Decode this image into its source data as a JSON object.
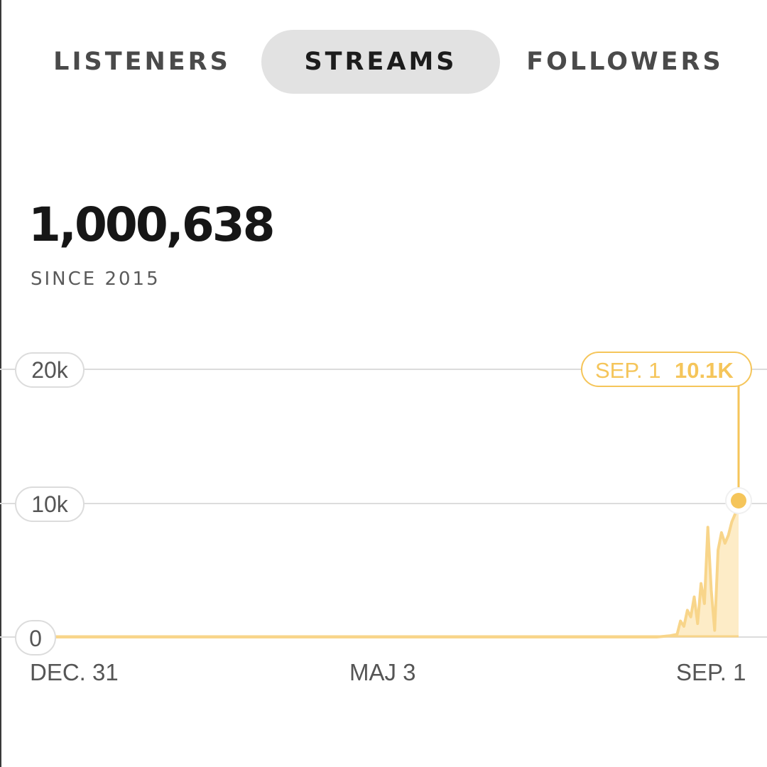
{
  "tabs": {
    "listeners": "LISTENERS",
    "streams": "STREAMS",
    "followers": "FOLLOWERS",
    "active": "STREAMS"
  },
  "stat": {
    "value": "1,000,638",
    "caption": "SINCE 2015"
  },
  "tooltip": {
    "date": "SEP. 1",
    "value": "10.1K"
  },
  "colors": {
    "accent": "#f5c55a",
    "accent_fill": "#fde9bd",
    "grid": "#dcdcdc",
    "active_tab_bg": "#e2e2e2"
  },
  "chart_data": {
    "type": "area",
    "x_tick_labels": [
      "DEC. 31",
      "MAJ 3",
      "SEP. 1"
    ],
    "y_tick_labels": [
      "0",
      "10k",
      "20k"
    ],
    "ylim": [
      0,
      20000
    ],
    "grid": true,
    "series": [
      {
        "points": [
          [
            0.0,
            0
          ],
          [
            0.5,
            0
          ],
          [
            0.88,
            0
          ],
          [
            0.9,
            100
          ],
          [
            0.91,
            200
          ],
          [
            0.915,
            1200
          ],
          [
            0.92,
            800
          ],
          [
            0.925,
            2000
          ],
          [
            0.93,
            1500
          ],
          [
            0.935,
            3000
          ],
          [
            0.94,
            1000
          ],
          [
            0.945,
            4000
          ],
          [
            0.95,
            2500
          ],
          [
            0.955,
            8200
          ],
          [
            0.96,
            3500
          ],
          [
            0.965,
            500
          ],
          [
            0.97,
            6500
          ],
          [
            0.975,
            7800
          ],
          [
            0.98,
            7000
          ],
          [
            0.985,
            7600
          ],
          [
            0.99,
            8600
          ],
          [
            0.995,
            9200
          ],
          [
            1.0,
            10100
          ]
        ]
      }
    ],
    "highlight": {
      "label": "SEP. 1",
      "value": 10100
    }
  }
}
